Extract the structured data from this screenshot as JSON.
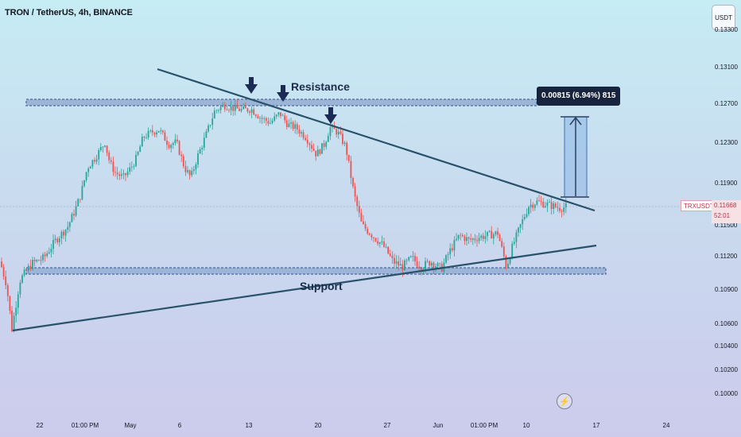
{
  "title": "TRON / TetherUS, 4h, BINANCE",
  "currency_button": "USDT",
  "symbol": "TRXUSDT",
  "last_price": "0.11668",
  "countdown": "52:01",
  "measure_label": "0.00815 (6.94%) 815",
  "annotations": {
    "resistance": "Resistance",
    "support": "Support"
  },
  "icons": {
    "bolt": "lightning-icon"
  },
  "colors": {
    "up": "#26a69a",
    "down": "#ef5350",
    "trend": "#28526a",
    "zone": "#6f88b8",
    "arrow": "#1b2b55",
    "measure": "#3c6fb5"
  },
  "chart_data": {
    "type": "candlestick",
    "y_ticks": [
      "0.13300",
      "0.13100",
      "0.12700",
      "0.12300",
      "0.11900",
      "0.11500",
      "0.11200",
      "0.10900",
      "0.10600",
      "0.10400",
      "0.10200",
      "0.10000"
    ],
    "x_ticks": [
      "22",
      "01:00 PM",
      "May",
      "6",
      "13",
      "20",
      "27",
      "Jun",
      "01:00 PM",
      "10",
      "17",
      "24"
    ],
    "resistance_zone": [
      0.1262,
      0.1268
    ],
    "support_zone": [
      0.1103,
      0.1109
    ],
    "measurement": {
      "from": 0.1177,
      "to": 0.1258,
      "change": "0.00815 (6.94%) 815"
    },
    "price_path": [
      [
        0,
        0.1115
      ],
      [
        8,
        0.1095
      ],
      [
        15,
        0.1055
      ],
      [
        25,
        0.1098
      ],
      [
        40,
        0.1113
      ],
      [
        55,
        0.1118
      ],
      [
        70,
        0.1135
      ],
      [
        85,
        0.1148
      ],
      [
        95,
        0.1165
      ],
      [
        102,
        0.118
      ],
      [
        110,
        0.1205
      ],
      [
        120,
        0.1215
      ],
      [
        132,
        0.123
      ],
      [
        138,
        0.121
      ],
      [
        145,
        0.12
      ],
      [
        155,
        0.1195
      ],
      [
        165,
        0.1205
      ],
      [
        172,
        0.1215
      ],
      [
        180,
        0.1235
      ],
      [
        190,
        0.124
      ],
      [
        200,
        0.1243
      ],
      [
        212,
        0.1228
      ],
      [
        222,
        0.123
      ],
      [
        232,
        0.1205
      ],
      [
        240,
        0.1195
      ],
      [
        248,
        0.1215
      ],
      [
        258,
        0.1235
      ],
      [
        270,
        0.1262
      ],
      [
        282,
        0.1268
      ],
      [
        292,
        0.1265
      ],
      [
        305,
        0.1263
      ],
      [
        316,
        0.1264
      ],
      [
        328,
        0.1255
      ],
      [
        340,
        0.125
      ],
      [
        352,
        0.126
      ],
      [
        362,
        0.1248
      ],
      [
        372,
        0.1245
      ],
      [
        385,
        0.1235
      ],
      [
        398,
        0.1218
      ],
      [
        408,
        0.1228
      ],
      [
        415,
        0.1245
      ],
      [
        425,
        0.124
      ],
      [
        435,
        0.1225
      ],
      [
        445,
        0.118
      ],
      [
        455,
        0.115
      ],
      [
        468,
        0.114
      ],
      [
        482,
        0.113
      ],
      [
        494,
        0.1115
      ],
      [
        506,
        0.111
      ],
      [
        518,
        0.1118
      ],
      [
        530,
        0.111
      ],
      [
        542,
        0.1115
      ],
      [
        555,
        0.1108
      ],
      [
        566,
        0.1125
      ],
      [
        578,
        0.114
      ],
      [
        590,
        0.1135
      ],
      [
        602,
        0.1138
      ],
      [
        614,
        0.114
      ],
      [
        626,
        0.1142
      ],
      [
        637,
        0.111
      ],
      [
        645,
        0.113
      ],
      [
        655,
        0.115
      ],
      [
        665,
        0.1168
      ],
      [
        675,
        0.1172
      ],
      [
        685,
        0.117
      ],
      [
        695,
        0.1168
      ],
      [
        705,
        0.1166
      ],
      [
        712,
        0.1167
      ]
    ],
    "down_arrows": [
      0.1292,
      0.128,
      0.1255
    ]
  }
}
